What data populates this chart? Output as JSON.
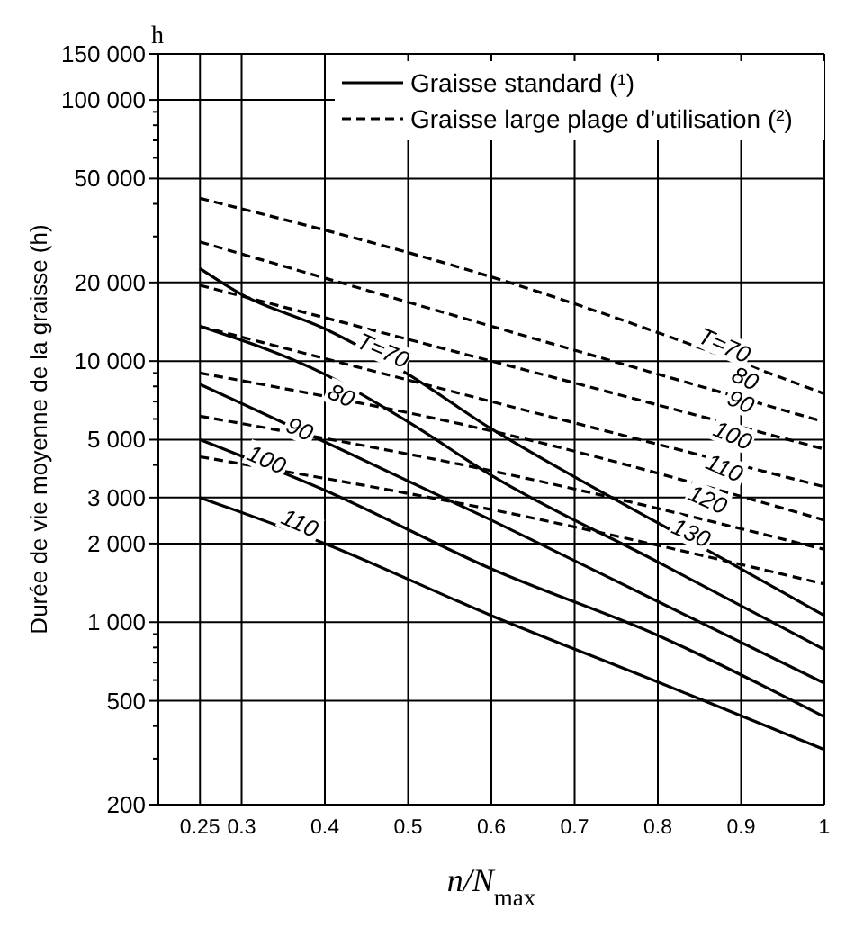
{
  "chart_data": {
    "type": "line",
    "ylabel": "Durée de vie moyenne de la graisse (h)",
    "xlabel": "n/N$_{max}$",
    "annotations": [
      "h",
      {
        "text": "T=70",
        "x": 0.47,
        "y": 11000
      },
      {
        "text": "80",
        "x": 0.42,
        "y": 7400
      },
      {
        "text": "90",
        "x": 0.37,
        "y": 5500
      },
      {
        "text": "100",
        "x": 0.33,
        "y": 4200
      },
      {
        "text": "110",
        "x": 0.37,
        "y": 2400
      },
      {
        "text": "T=70",
        "x": 0.88,
        "y": 11500
      },
      {
        "text": "80",
        "x": 0.905,
        "y": 8600
      },
      {
        "text": "90",
        "x": 0.9,
        "y": 7000
      },
      {
        "text": "100",
        "x": 0.89,
        "y": 5200
      },
      {
        "text": "110",
        "x": 0.88,
        "y": 3900
      },
      {
        "text": "120",
        "x": 0.86,
        "y": 2950
      },
      {
        "text": "130",
        "x": 0.84,
        "y": 2200
      }
    ],
    "log": "y",
    "grid": true,
    "legend": "top right",
    "xlim": [
      0.2,
      1
    ],
    "xticks": [
      0.25,
      0.3,
      0.4,
      0.5,
      0.6,
      0.7,
      0.8,
      0.9,
      {
        "value": 1,
        "label": "1"
      }
    ],
    "ylim": [
      200,
      150000
    ],
    "yticks": [
      {
        "value": 200,
        "label": "200"
      },
      {
        "value": 300,
        "label": null
      },
      {
        "value": 400,
        "label": null
      },
      {
        "value": 500,
        "label": "500"
      },
      {
        "value": 600,
        "label": null
      },
      {
        "value": 700,
        "label": null
      },
      {
        "value": 800,
        "label": null
      },
      {
        "value": 900,
        "label": null
      },
      {
        "value": 1000,
        "label": "1 000"
      },
      {
        "value": 2000,
        "label": "2 000"
      },
      {
        "value": 3000,
        "label": "3 000"
      },
      {
        "value": 4000,
        "label": null
      },
      {
        "value": 5000,
        "label": "5 000"
      },
      {
        "value": 6000,
        "label": null
      },
      {
        "value": 7000,
        "label": null
      },
      {
        "value": 8000,
        "label": null
      },
      {
        "value": 9000,
        "label": null
      },
      {
        "value": 10000,
        "label": "10 000"
      },
      {
        "value": 20000,
        "label": "20 000"
      },
      {
        "value": 30000,
        "label": null
      },
      {
        "value": 40000,
        "label": null
      },
      {
        "value": 50000,
        "label": "50 000"
      },
      {
        "value": 60000,
        "label": null
      },
      {
        "value": 70000,
        "label": null
      },
      {
        "value": 80000,
        "label": null
      },
      {
        "value": 90000,
        "label": null
      },
      {
        "value": 100000,
        "label": "100 000"
      },
      {
        "value": 150000,
        "label": "150 000"
      }
    ],
    "series": [
      {
        "name": "Graisse standard (¹)",
        "color": "#000000",
        "line_style": "solid",
        "x": [
          0.25,
          0.3,
          0.4,
          0.5,
          0.6,
          0.7,
          0.8,
          0.9,
          1
        ],
        "values": [
          22600,
          18000,
          13300,
          8900,
          5500,
          3600,
          2400,
          1600,
          1060
        ]
      },
      {
        "color": "#000000",
        "line_style": "solid",
        "x": [
          0.25,
          0.4,
          0.5,
          0.6,
          0.8,
          1
        ],
        "values": [
          13600,
          8900,
          5850,
          3650,
          1700,
          785
        ]
      },
      {
        "color": "#000000",
        "line_style": "solid",
        "x": [
          0.25,
          0.4,
          0.6,
          0.8,
          1
        ],
        "values": [
          8150,
          4900,
          2460,
          1200,
          584
        ]
      },
      {
        "color": "#000000",
        "line_style": "solid",
        "x": [
          0.25,
          0.4,
          0.6,
          0.8,
          1
        ],
        "values": [
          5000,
          3200,
          1600,
          890,
          434
        ]
      },
      {
        "color": "#000000",
        "line_style": "solid",
        "x": [
          0.25,
          0.4,
          0.6,
          0.8,
          1
        ],
        "values": [
          3000,
          2000,
          1060,
          590,
          325
        ]
      },
      {
        "name": "Graisse large plage d’utilisation (²)",
        "color": "#000000",
        "line_style": "dashed",
        "x": [
          0.25,
          0.6,
          1
        ],
        "values": [
          42000,
          21000,
          7500
        ]
      },
      {
        "color": "#000000",
        "line_style": "dashed",
        "x": [
          0.25,
          0.6,
          1
        ],
        "values": [
          28600,
          13600,
          5850
        ]
      },
      {
        "color": "#000000",
        "line_style": "dashed",
        "x": [
          0.25,
          0.6,
          1
        ],
        "values": [
          19500,
          10000,
          4600
        ]
      },
      {
        "color": "#000000",
        "line_style": "dashed",
        "x": [
          0.25,
          0.6,
          1
        ],
        "values": [
          13600,
          7000,
          3300
        ]
      },
      {
        "color": "#000000",
        "line_style": "dashed",
        "x": [
          0.25,
          0.6,
          1
        ],
        "values": [
          9000,
          5400,
          2460
        ]
      },
      {
        "color": "#000000",
        "line_style": "dashed",
        "x": [
          0.25,
          0.6,
          1
        ],
        "values": [
          6150,
          3800,
          1900
        ]
      },
      {
        "color": "#000000",
        "line_style": "dashed",
        "x": [
          0.25,
          0.6,
          1
        ],
        "values": [
          4300,
          2700,
          1400
        ]
      }
    ]
  }
}
